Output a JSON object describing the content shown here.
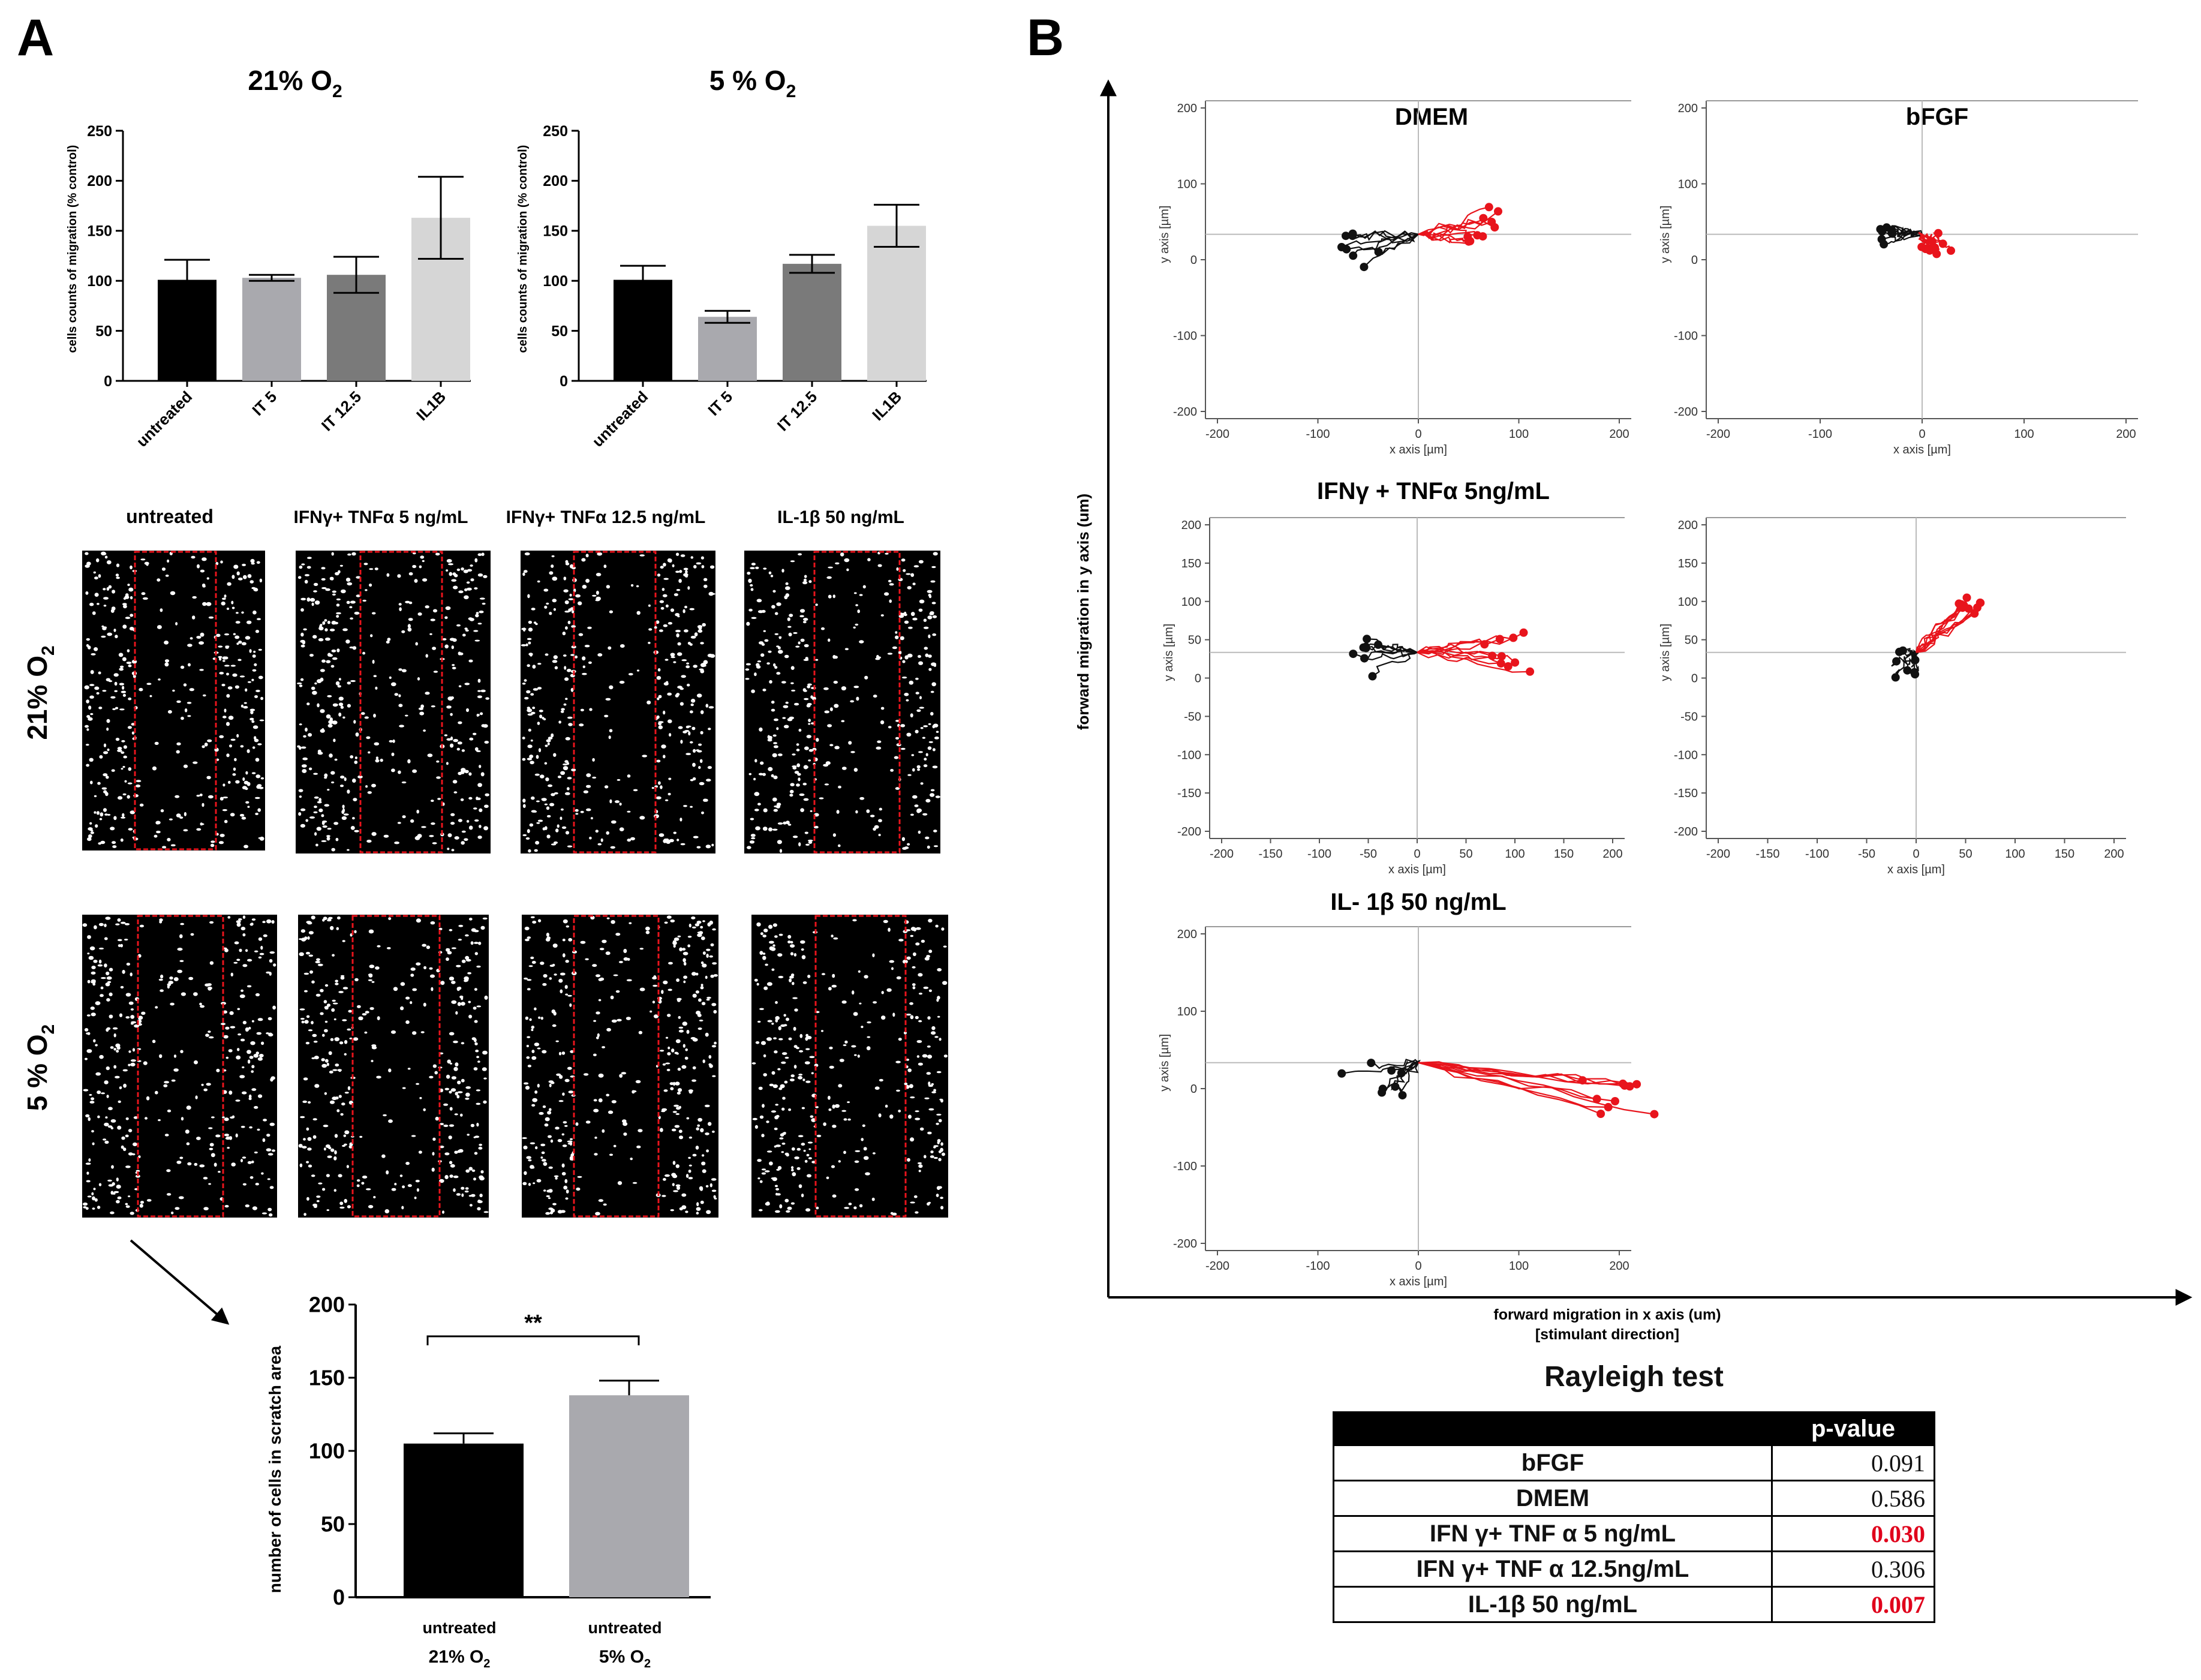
{
  "panels": {
    "a_label": "A",
    "b_label": "B"
  },
  "panel_a": {
    "chart_21": {
      "title_main": "21% O",
      "title_sub": "2",
      "ylabel": "cells counts of migration (% control)",
      "yticks": [
        "0",
        "50",
        "100",
        "150",
        "200",
        "250"
      ]
    },
    "chart_5": {
      "title_main": "5 % O",
      "title_sub": "2",
      "ylabel": "cells counts of migration (% control)",
      "yticks": [
        "0",
        "50",
        "100",
        "150",
        "200",
        "250"
      ]
    },
    "micro": {
      "col_labels": [
        "untreated",
        "IFNγ+ TNFα 5 ng/mL",
        "IFNγ+ TNFα 12.5 ng/mL",
        "IL-1β 50 ng/mL"
      ],
      "row_21_main": "21% O",
      "row_21_sub": "2",
      "row_5_main": "5 % O",
      "row_5_sub": "2"
    },
    "chart_scratch": {
      "ylabel": "number of cells in scratch area",
      "yticks": [
        "0",
        "50",
        "100",
        "150",
        "200"
      ],
      "significance": "**",
      "cat1_line1": "untreated",
      "cat1_line2": "21% O",
      "cat1_sub": "2",
      "cat2_line1": "untreated",
      "cat2_line2": "5% O",
      "cat2_sub": "2"
    }
  },
  "panel_b": {
    "y_axis_label": "forward migration in y axis (um)",
    "x_axis_label": "forward migration in x axis (um)",
    "x_axis_note": "[stimulant direction]",
    "plot_titles": {
      "dmem": "DMEM",
      "bfgf": "bFGF",
      "ifn5": "IFNγ + TNFα 5ng/mL",
      "il1b": "IL- 1β  50 ng/mL"
    },
    "tracks_xlabel": "x axis [µm]",
    "tracks_ylabel": "y axis [µm]",
    "x_ticks_a": [
      "-200",
      "-100",
      "0",
      "100",
      "200"
    ],
    "x_ticks_b": [
      "-200",
      "-150",
      "-100",
      "-50",
      "0",
      "50",
      "100",
      "150",
      "200"
    ],
    "y_ticks_a": [
      "200",
      "100",
      "0",
      "-100",
      "-200"
    ],
    "y_ticks_b": [
      "200",
      "150",
      "100",
      "50",
      "0",
      "-50",
      "-100",
      "-150",
      "-200"
    ]
  },
  "rayleigh": {
    "title": "Rayleigh test",
    "header_value": "p-value",
    "rows": [
      {
        "label": "bFGF",
        "value": "0.091"
      },
      {
        "label": "DMEM",
        "value": "0.586"
      },
      {
        "label": "IFN γ+ TNF  α 5 ng/mL",
        "value": "0.030"
      },
      {
        "label": "IFN  γ+ TNF  α 12.5ng/mL",
        "value": "0.306"
      },
      {
        "label": "IL-1β 50 ng/mL",
        "value": "0.007"
      }
    ]
  },
  "colors": {
    "track_red": "#e8141c",
    "track_black": "#111111",
    "sig_red": "#e0001b"
  },
  "chart_data": [
    {
      "type": "bar",
      "id": "o2_21",
      "title": "21% O2",
      "categories": [
        "untreated",
        "IT 5",
        "IT 12.5",
        "IL1B"
      ],
      "values": [
        101,
        103,
        106,
        163
      ],
      "errors": [
        20,
        3,
        18,
        41
      ],
      "colors": [
        "#000000",
        "#a9a9ae",
        "#7a7a7a",
        "#d6d6d6"
      ],
      "ylabel": "cells counts of migration (% control)",
      "ylim": [
        0,
        250
      ]
    },
    {
      "type": "bar",
      "id": "o2_5",
      "title": "5 % O2",
      "categories": [
        "untreated",
        "IT 5",
        "IT 12.5",
        "IL1B"
      ],
      "values": [
        101,
        64,
        117,
        155
      ],
      "errors": [
        14,
        6,
        9,
        21
      ],
      "colors": [
        "#000000",
        "#a9a9ae",
        "#7a7a7a",
        "#d6d6d6"
      ],
      "ylabel": "cells counts of migration (% control)",
      "ylim": [
        0,
        250
      ]
    },
    {
      "type": "bar",
      "id": "scratch",
      "categories": [
        "untreated 21% O2",
        "untreated 5% O2"
      ],
      "values": [
        105,
        138
      ],
      "errors": [
        7,
        10
      ],
      "colors": [
        "#000000",
        "#a9a9ae"
      ],
      "ylabel": "number of cells in scratch area",
      "ylim": [
        0,
        200
      ]
    }
  ]
}
